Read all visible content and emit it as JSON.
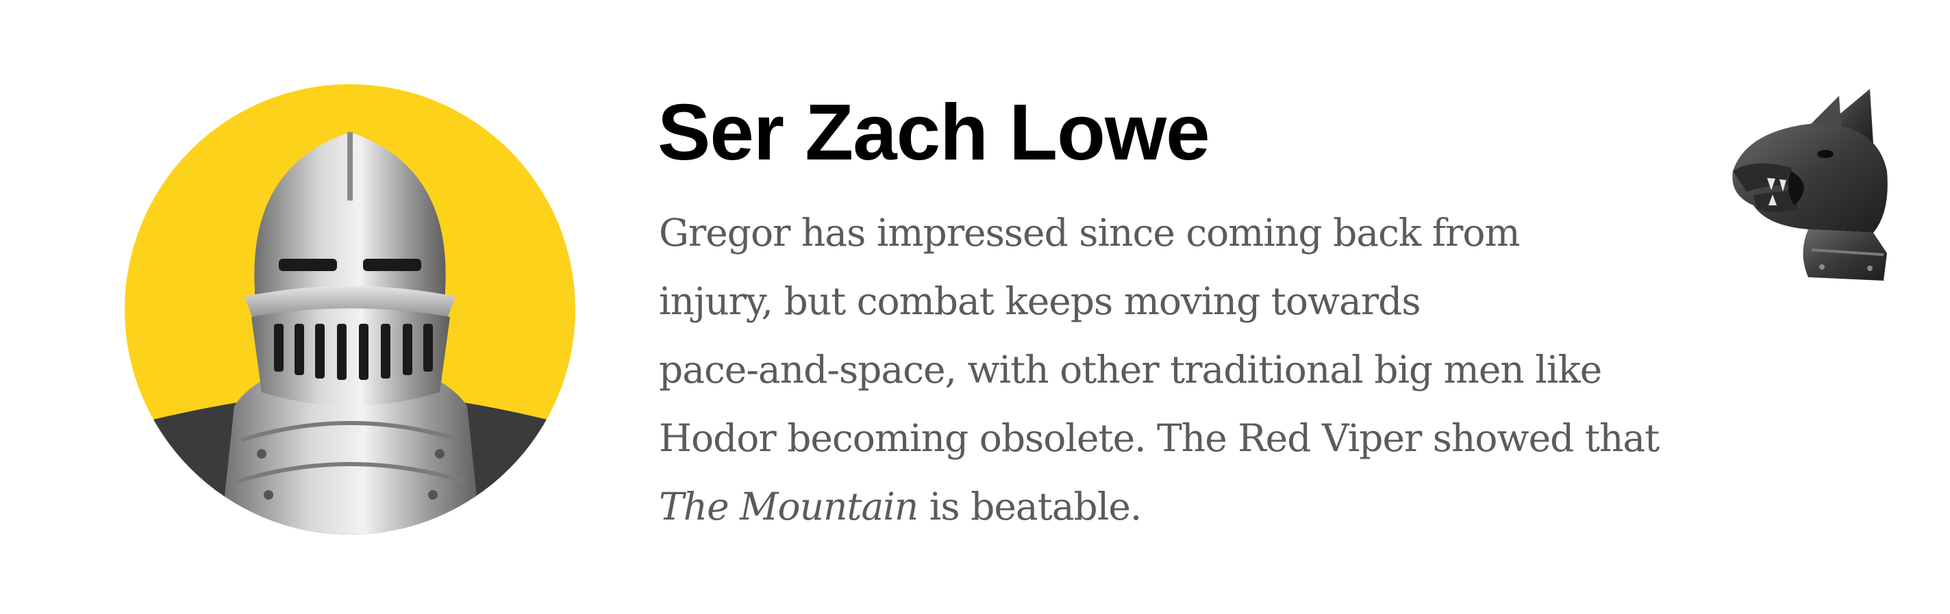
{
  "profile": {
    "name": "Ser Zach Lowe",
    "avatar_icon": "knight-helmet-icon",
    "avatar_bg_color": "#fdd21b",
    "sigil_icon": "hound-helm-icon",
    "bio_lines": [
      "Gregor has impressed since coming back from",
      "injury, but combat keeps moving towards",
      "pace-and-space, with other traditional big men like",
      "Hodor becoming obsolete. The Red Viper showed that"
    ],
    "bio_last_italic": "The Mountain",
    "bio_last_rest": " is beatable."
  }
}
